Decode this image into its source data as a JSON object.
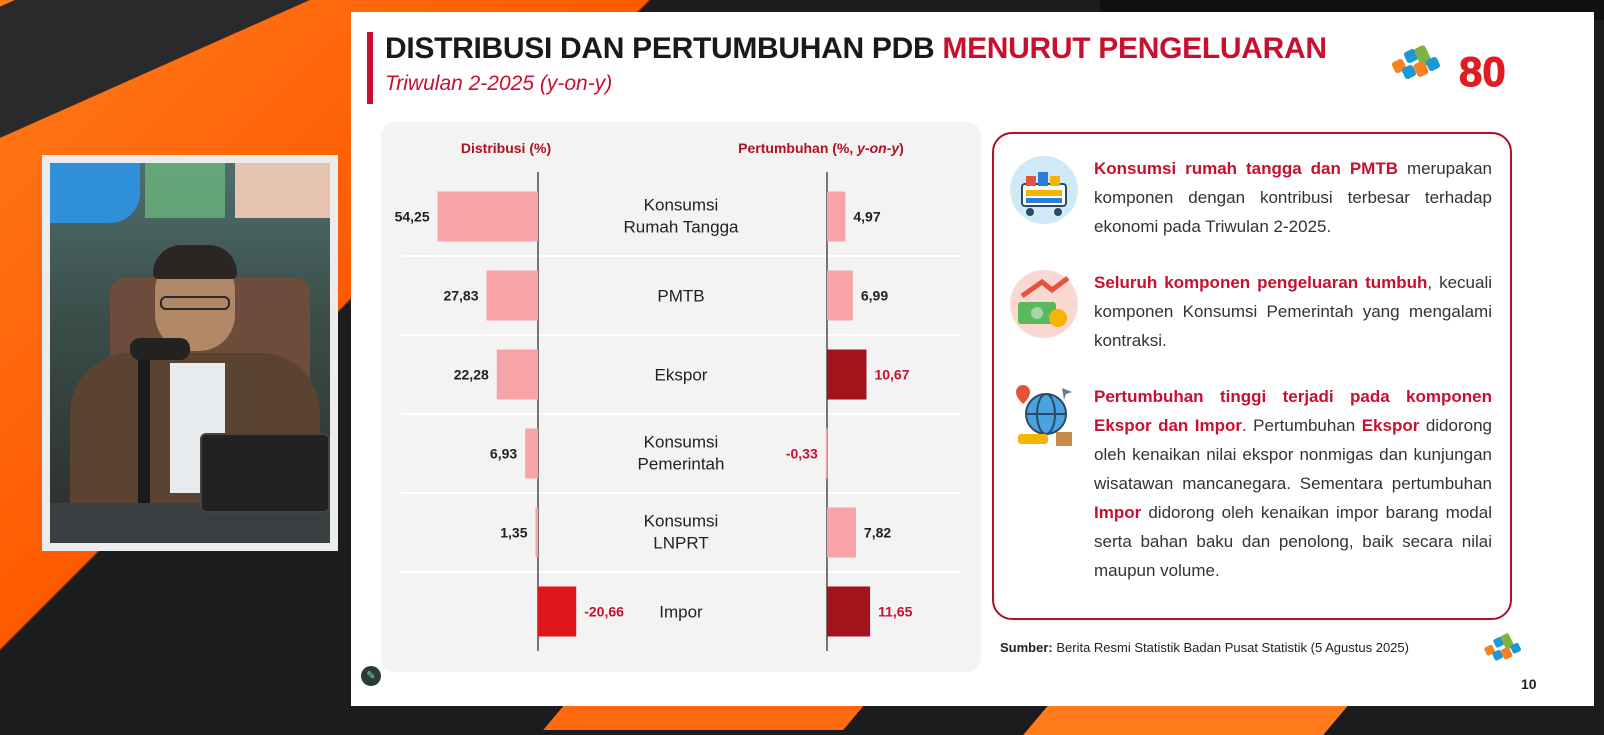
{
  "slide": {
    "title_main": "DISTRIBUSI DAN PERTUMBUHAN PDB ",
    "title_accent": "MENURUT PENGELUARAN",
    "subtitle": "Triwulan 2-2025 (y-on-y)",
    "logo_text": "80",
    "source_label": "Sumber:",
    "source_text": " Berita Resmi Statistik Badan Pusat Statistik (5 Agustus 2025)",
    "page_number": "10"
  },
  "chart_data": {
    "type": "bar",
    "left_header": "Distribusi (%)",
    "right_header_main": "Pertumbuhan (%, ",
    "right_header_italic": "y-on-y",
    "right_header_end": ")",
    "categories": [
      [
        "Konsumsi",
        "Rumah Tangga"
      ],
      [
        "PMTB"
      ],
      [
        "Ekspor"
      ],
      [
        "Konsumsi",
        "Pemerintah"
      ],
      [
        "Konsumsi",
        "LNPRT"
      ],
      [
        "Impor"
      ]
    ],
    "series": [
      {
        "values": [
          54.25,
          27.83,
          22.28,
          6.93,
          1.35,
          -20.66
        ],
        "labels": [
          "54,25",
          "27,83",
          "22,28",
          "6,93",
          "1,35",
          "-20,66"
        ]
      },
      {
        "values": [
          4.97,
          6.99,
          10.67,
          -0.33,
          7.82,
          11.65
        ],
        "labels": [
          "4,97",
          "6,99",
          "10,67",
          "-0,33",
          "7,82",
          "11,65"
        ]
      }
    ],
    "colors": {
      "light_bar": "#f7a3a8",
      "dark_bar": "#a3131b",
      "red_bar": "#e0151b",
      "negative_label": "#c8102e"
    }
  },
  "info": {
    "items": [
      {
        "icon": "shopping-cart-icon",
        "highlight": "Konsumsi rumah tangga dan PMTB",
        "text": " merupakan komponen dengan kontribusi terbesar terhadap ekonomi pada Triwulan 2-2025."
      },
      {
        "icon": "money-growth-icon",
        "highlight": "Seluruh komponen pengeluaran tumbuh",
        "text": ", kecuali komponen Konsumsi Pemerintah yang mengalami kontraksi."
      },
      {
        "icon": "globe-trade-icon",
        "highlight": "Pertumbuhan tinggi terjadi pada komponen Ekspor dan Impor",
        "text_a": ". Pertumbuhan ",
        "hl_b": "Ekspor",
        "text_b": " didorong oleh kenaikan nilai ekspor nonmigas dan kunjungan wisatawan mancanegara. Sementara pertumbuhan ",
        "hl_c": "Impor",
        "text_c": " didorong oleh kenaikan impor barang modal serta bahan baku dan penolong, baik secara nilai maupun volume."
      }
    ]
  }
}
